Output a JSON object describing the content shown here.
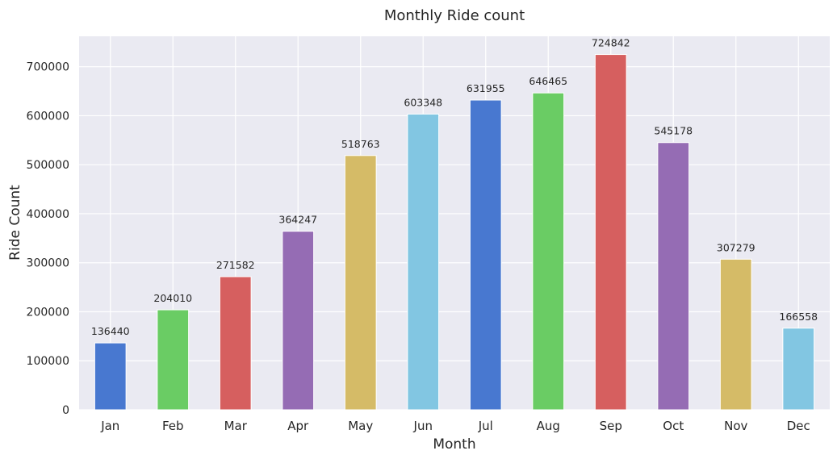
{
  "chart_data": {
    "type": "bar",
    "title": "Monthly Ride count",
    "xlabel": "Month",
    "ylabel": "Ride Count",
    "categories": [
      "Jan",
      "Feb",
      "Mar",
      "Apr",
      "May",
      "Jun",
      "Jul",
      "Aug",
      "Sep",
      "Oct",
      "Nov",
      "Dec"
    ],
    "values": [
      136440,
      204010,
      271582,
      364247,
      518763,
      603348,
      631955,
      646465,
      724842,
      545178,
      307279,
      166558
    ],
    "data_labels": [
      "136440",
      "204010",
      "271582",
      "364247",
      "518763",
      "603348",
      "631955",
      "646465",
      "724842",
      "545178",
      "307279",
      "166558"
    ],
    "colors": [
      "#4878d0",
      "#6acc64",
      "#d65f5f",
      "#956cb4",
      "#d5bb67",
      "#82c6e2",
      "#4878d0",
      "#6acc64",
      "#d65f5f",
      "#956cb4",
      "#d5bb67",
      "#82c6e2"
    ],
    "ylim": [
      0,
      762000
    ],
    "yticks": [
      0,
      100000,
      200000,
      300000,
      400000,
      500000,
      600000,
      700000
    ],
    "ytick_labels": [
      "0",
      "100000",
      "200000",
      "300000",
      "400000",
      "500000",
      "600000",
      "700000"
    ],
    "grid": true,
    "background_color": "#eaeaf2"
  }
}
